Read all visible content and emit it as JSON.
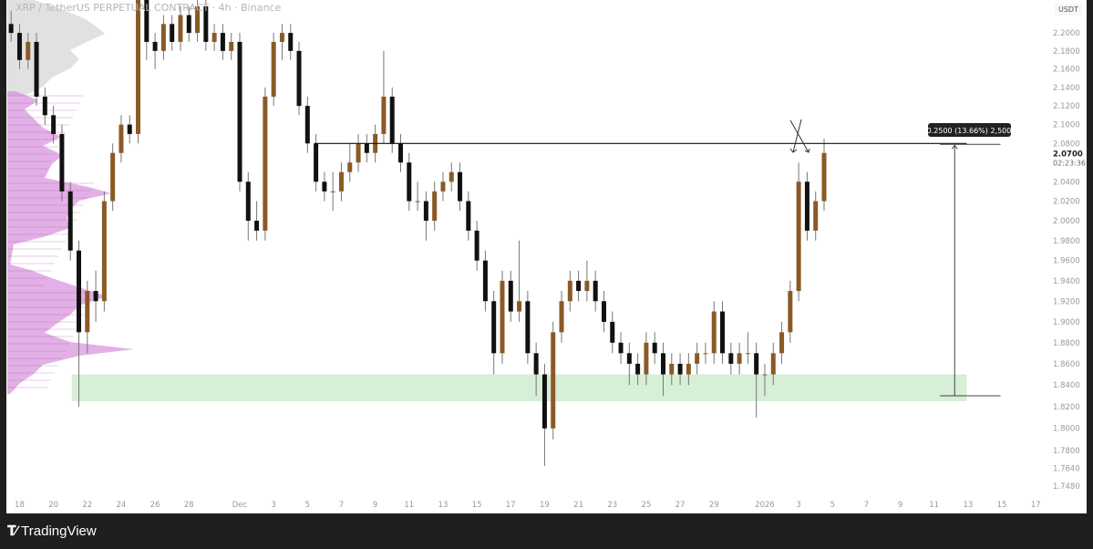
{
  "header": {
    "title": "XRP / TetherUS PERPETUAL CONTRACT · 4h · Binance",
    "currency": "USDT"
  },
  "footer": {
    "brand": "TradingView"
  },
  "colors": {
    "up": "#8a5a26",
    "down": "#111111",
    "wick": "#777777",
    "zone": "#d6efd6",
    "profile_pink": "#d58fdc",
    "profile_gray": "#c8c8c8"
  },
  "price_label": {
    "value": "2.0700",
    "countdown": "02:23:36"
  },
  "chart_data": {
    "type": "candlestick",
    "title": "XRP / TetherUS PERPETUAL CONTRACT · 4h · Binance",
    "y_scale": "log",
    "ylim": [
      1.74,
      2.24
    ],
    "grid": false,
    "y_ticks": [
      "2.2000",
      "2.1800",
      "2.1600",
      "2.1400",
      "2.1200",
      "2.1000",
      "2.0800",
      "2.0400",
      "2.0200",
      "2.0000",
      "1.9800",
      "1.9600",
      "1.9400",
      "1.9200",
      "1.9000",
      "1.8800",
      "1.8600",
      "1.8400",
      "1.8200",
      "1.8000",
      "1.7800",
      "1.7640",
      "1.7480"
    ],
    "x_ticks": [
      [
        "18",
        "2025-11-18"
      ],
      [
        "20",
        "2025-11-20"
      ],
      [
        "22",
        "2025-11-22"
      ],
      [
        "24",
        "2025-11-24"
      ],
      [
        "26",
        "2025-11-26"
      ],
      [
        "28",
        "2025-11-28"
      ],
      [
        "Dec",
        "2025-12-01"
      ],
      [
        "3",
        "2025-12-03"
      ],
      [
        "5",
        "2025-12-05"
      ],
      [
        "7",
        "2025-12-07"
      ],
      [
        "9",
        "2025-12-09"
      ],
      [
        "11",
        "2025-12-11"
      ],
      [
        "13",
        "2025-12-13"
      ],
      [
        "15",
        "2025-12-15"
      ],
      [
        "17",
        "2025-12-17"
      ],
      [
        "19",
        "2025-12-19"
      ],
      [
        "21",
        "2025-12-21"
      ],
      [
        "23",
        "2025-12-23"
      ],
      [
        "25",
        "2025-12-25"
      ],
      [
        "27",
        "2025-12-27"
      ],
      [
        "29",
        "2025-12-29"
      ],
      [
        "2026",
        "2026-01-01"
      ],
      [
        "3",
        "2026-01-03"
      ],
      [
        "5",
        "2026-01-05"
      ],
      [
        "7",
        "2026-01-07"
      ],
      [
        "9",
        "2026-01-09"
      ],
      [
        "11",
        "2026-01-11"
      ],
      [
        "13",
        "2026-01-13"
      ],
      [
        "15",
        "2026-01-15"
      ],
      [
        "17",
        "2026-01-17"
      ]
    ],
    "candles_columns": [
      "time",
      "open",
      "high",
      "low",
      "close"
    ],
    "candles": [
      [
        "2025-11-17T12:00",
        2.21,
        2.225,
        2.19,
        2.2
      ],
      [
        "2025-11-18T00:00",
        2.2,
        2.21,
        2.16,
        2.17
      ],
      [
        "2025-11-18T12:00",
        2.17,
        2.2,
        2.16,
        2.19
      ],
      [
        "2025-11-19T00:00",
        2.19,
        2.2,
        2.12,
        2.13
      ],
      [
        "2025-11-19T12:00",
        2.13,
        2.14,
        2.1,
        2.11
      ],
      [
        "2025-11-20T00:00",
        2.11,
        2.12,
        2.08,
        2.09
      ],
      [
        "2025-11-20T12:00",
        2.09,
        2.1,
        2.02,
        2.03
      ],
      [
        "2025-11-21T00:00",
        2.03,
        2.04,
        1.96,
        1.97
      ],
      [
        "2025-11-21T12:00",
        1.97,
        1.98,
        1.82,
        1.89
      ],
      [
        "2025-11-22T00:00",
        1.89,
        1.94,
        1.87,
        1.93
      ],
      [
        "2025-11-22T12:00",
        1.93,
        1.95,
        1.9,
        1.92
      ],
      [
        "2025-11-23T00:00",
        1.92,
        2.03,
        1.91,
        2.02
      ],
      [
        "2025-11-23T12:00",
        2.02,
        2.08,
        2.01,
        2.07
      ],
      [
        "2025-11-24T00:00",
        2.07,
        2.11,
        2.06,
        2.1
      ],
      [
        "2025-11-24T12:00",
        2.1,
        2.11,
        2.08,
        2.09
      ],
      [
        "2025-11-25T00:00",
        2.09,
        2.26,
        2.08,
        2.24
      ],
      [
        "2025-11-25T12:00",
        2.24,
        2.25,
        2.17,
        2.19
      ],
      [
        "2025-11-26T00:00",
        2.19,
        2.2,
        2.16,
        2.18
      ],
      [
        "2025-11-26T12:00",
        2.18,
        2.22,
        2.17,
        2.21
      ],
      [
        "2025-11-27T00:00",
        2.21,
        2.22,
        2.18,
        2.19
      ],
      [
        "2025-11-27T12:00",
        2.19,
        2.23,
        2.18,
        2.22
      ],
      [
        "2025-11-28T00:00",
        2.22,
        2.23,
        2.19,
        2.2
      ],
      [
        "2025-11-28T12:00",
        2.2,
        2.24,
        2.19,
        2.23
      ],
      [
        "2025-11-29T00:00",
        2.23,
        2.24,
        2.18,
        2.19
      ],
      [
        "2025-11-29T12:00",
        2.19,
        2.21,
        2.18,
        2.2
      ],
      [
        "2025-11-30T00:00",
        2.2,
        2.21,
        2.17,
        2.18
      ],
      [
        "2025-11-30T12:00",
        2.18,
        2.2,
        2.17,
        2.19
      ],
      [
        "2025-12-01T00:00",
        2.19,
        2.2,
        2.03,
        2.04
      ],
      [
        "2025-12-01T12:00",
        2.04,
        2.05,
        1.98,
        2.0
      ],
      [
        "2025-12-02T00:00",
        2.0,
        2.02,
        1.98,
        1.99
      ],
      [
        "2025-12-02T12:00",
        1.99,
        2.14,
        1.98,
        2.13
      ],
      [
        "2025-12-03T00:00",
        2.13,
        2.2,
        2.12,
        2.19
      ],
      [
        "2025-12-03T12:00",
        2.19,
        2.21,
        2.17,
        2.2
      ],
      [
        "2025-12-04T00:00",
        2.2,
        2.21,
        2.17,
        2.18
      ],
      [
        "2025-12-04T12:00",
        2.18,
        2.19,
        2.11,
        2.12
      ],
      [
        "2025-12-05T00:00",
        2.12,
        2.13,
        2.07,
        2.08
      ],
      [
        "2025-12-05T12:00",
        2.08,
        2.09,
        2.03,
        2.04
      ],
      [
        "2025-12-06T00:00",
        2.04,
        2.05,
        2.02,
        2.03
      ],
      [
        "2025-12-06T12:00",
        2.03,
        2.05,
        2.01,
        2.03
      ],
      [
        "2025-12-07T00:00",
        2.03,
        2.06,
        2.02,
        2.05
      ],
      [
        "2025-12-07T12:00",
        2.05,
        2.08,
        2.04,
        2.06
      ],
      [
        "2025-12-08T00:00",
        2.06,
        2.09,
        2.05,
        2.08
      ],
      [
        "2025-12-08T12:00",
        2.08,
        2.09,
        2.06,
        2.07
      ],
      [
        "2025-12-09T00:00",
        2.07,
        2.1,
        2.06,
        2.09
      ],
      [
        "2025-12-09T12:00",
        2.09,
        2.18,
        2.08,
        2.13
      ],
      [
        "2025-12-10T00:00",
        2.13,
        2.14,
        2.07,
        2.08
      ],
      [
        "2025-12-10T12:00",
        2.08,
        2.09,
        2.05,
        2.06
      ],
      [
        "2025-12-11T00:00",
        2.06,
        2.07,
        2.01,
        2.02
      ],
      [
        "2025-12-11T12:00",
        2.02,
        2.04,
        2.01,
        2.02
      ],
      [
        "2025-12-12T00:00",
        2.02,
        2.03,
        1.98,
        2.0
      ],
      [
        "2025-12-12T12:00",
        2.0,
        2.04,
        1.99,
        2.03
      ],
      [
        "2025-12-13T00:00",
        2.03,
        2.05,
        2.02,
        2.04
      ],
      [
        "2025-12-13T12:00",
        2.04,
        2.06,
        2.03,
        2.05
      ],
      [
        "2025-12-14T00:00",
        2.05,
        2.06,
        2.01,
        2.02
      ],
      [
        "2025-12-14T12:00",
        2.02,
        2.03,
        1.98,
        1.99
      ],
      [
        "2025-12-15T00:00",
        1.99,
        2.0,
        1.95,
        1.96
      ],
      [
        "2025-12-15T12:00",
        1.96,
        1.97,
        1.91,
        1.92
      ],
      [
        "2025-12-16T00:00",
        1.92,
        1.93,
        1.85,
        1.87
      ],
      [
        "2025-12-16T12:00",
        1.87,
        1.95,
        1.86,
        1.94
      ],
      [
        "2025-12-17T00:00",
        1.94,
        1.95,
        1.9,
        1.91
      ],
      [
        "2025-12-17T12:00",
        1.91,
        1.98,
        1.9,
        1.92
      ],
      [
        "2025-12-18T00:00",
        1.92,
        1.93,
        1.86,
        1.87
      ],
      [
        "2025-12-18T12:00",
        1.87,
        1.88,
        1.83,
        1.85
      ],
      [
        "2025-12-19T00:00",
        1.85,
        1.86,
        1.766,
        1.8
      ],
      [
        "2025-12-19T12:00",
        1.8,
        1.9,
        1.79,
        1.89
      ],
      [
        "2025-12-20T00:00",
        1.89,
        1.93,
        1.88,
        1.92
      ],
      [
        "2025-12-20T12:00",
        1.92,
        1.95,
        1.91,
        1.94
      ],
      [
        "2025-12-21T00:00",
        1.94,
        1.95,
        1.92,
        1.93
      ],
      [
        "2025-12-21T12:00",
        1.93,
        1.96,
        1.92,
        1.94
      ],
      [
        "2025-12-22T00:00",
        1.94,
        1.95,
        1.91,
        1.92
      ],
      [
        "2025-12-22T12:00",
        1.92,
        1.93,
        1.89,
        1.9
      ],
      [
        "2025-12-23T00:00",
        1.9,
        1.91,
        1.87,
        1.88
      ],
      [
        "2025-12-23T12:00",
        1.88,
        1.89,
        1.86,
        1.87
      ],
      [
        "2025-12-24T00:00",
        1.87,
        1.88,
        1.84,
        1.86
      ],
      [
        "2025-12-24T12:00",
        1.86,
        1.87,
        1.84,
        1.85
      ],
      [
        "2025-12-25T00:00",
        1.85,
        1.89,
        1.84,
        1.88
      ],
      [
        "2025-12-25T12:00",
        1.88,
        1.89,
        1.86,
        1.87
      ],
      [
        "2025-12-26T00:00",
        1.87,
        1.88,
        1.83,
        1.85
      ],
      [
        "2025-12-26T12:00",
        1.85,
        1.87,
        1.84,
        1.86
      ],
      [
        "2025-12-27T00:00",
        1.86,
        1.87,
        1.84,
        1.85
      ],
      [
        "2025-12-27T12:00",
        1.85,
        1.87,
        1.84,
        1.86
      ],
      [
        "2025-12-28T00:00",
        1.86,
        1.88,
        1.85,
        1.87
      ],
      [
        "2025-12-28T12:00",
        1.87,
        1.88,
        1.86,
        1.87
      ],
      [
        "2025-12-29T00:00",
        1.87,
        1.92,
        1.86,
        1.91
      ],
      [
        "2025-12-29T12:00",
        1.91,
        1.92,
        1.86,
        1.87
      ],
      [
        "2025-12-30T00:00",
        1.87,
        1.88,
        1.85,
        1.86
      ],
      [
        "2025-12-30T12:00",
        1.86,
        1.88,
        1.85,
        1.87
      ],
      [
        "2025-12-31T00:00",
        1.87,
        1.89,
        1.86,
        1.87
      ],
      [
        "2025-12-31T12:00",
        1.87,
        1.88,
        1.81,
        1.85
      ],
      [
        "2026-01-01T00:00",
        1.85,
        1.86,
        1.83,
        1.85
      ],
      [
        "2026-01-01T12:00",
        1.85,
        1.88,
        1.84,
        1.87
      ],
      [
        "2026-01-02T00:00",
        1.87,
        1.9,
        1.86,
        1.89
      ],
      [
        "2026-01-02T12:00",
        1.89,
        1.94,
        1.88,
        1.93
      ],
      [
        "2026-01-03T00:00",
        1.93,
        2.06,
        1.92,
        2.04
      ],
      [
        "2026-01-03T12:00",
        2.04,
        2.05,
        1.98,
        1.99
      ],
      [
        "2026-01-04T00:00",
        1.99,
        2.03,
        1.98,
        2.02
      ],
      [
        "2026-01-04T12:00",
        2.02,
        2.085,
        2.01,
        2.07
      ]
    ],
    "drawings": {
      "resistance_line": {
        "price": 2.08,
        "from": "2025-12-05T10:00",
        "to": "2026-01-12T22:00"
      },
      "support_zone": {
        "low": 1.825,
        "high": 1.85,
        "from": "2025-11-21T02:00",
        "to": "2026-01-12T22:00"
      },
      "measure": {
        "from_price": 1.83,
        "to_price": 2.08,
        "label": "0.2500 (13.66%) 2,500",
        "from": "2026-01-11T08:00",
        "to": "2026-01-14T22:00",
        "arrow_at": "2026-01-12T05:00"
      }
    }
  }
}
